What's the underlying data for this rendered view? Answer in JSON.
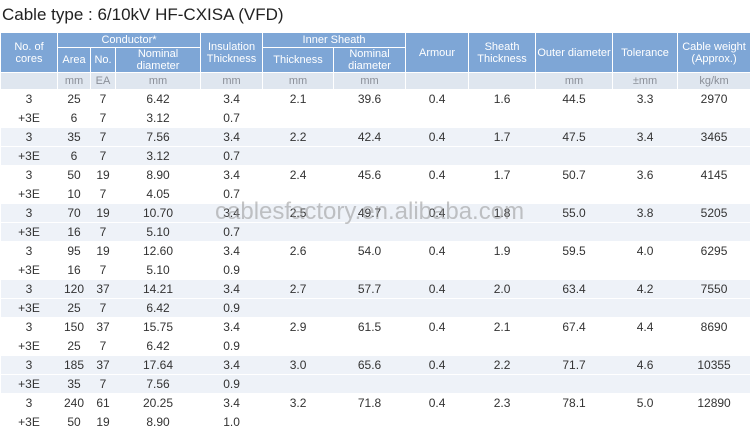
{
  "title": "Cable type : 6/10kV HF-CXISA (VFD)",
  "watermark": "cablesfactory.en.alibaba.com",
  "header": {
    "cores": "No. of cores",
    "conductor": "Conductor*",
    "insulation": "Insulation Thickness",
    "inner_sheath": "Inner Sheath",
    "armour": "Armour",
    "sheath": "Sheath Thickness",
    "outer": "Outer diameter",
    "tolerance": "Tolerance",
    "weight": "Cable weight (Approx.)",
    "sub": [
      "Area",
      "No.",
      "Nominal diameter",
      "Thickness",
      "Nominal diameter"
    ],
    "units": [
      "mm",
      "EA",
      "mm",
      "mm",
      "mm",
      "mm",
      "",
      "",
      "mm",
      "±mm",
      "kg/km"
    ]
  },
  "table": {
    "rows": [
      [
        "3",
        "25",
        "7",
        "6.42",
        "3.4",
        "2.1",
        "39.6",
        "0.4",
        "1.6",
        "44.5",
        "3.3",
        "2970"
      ],
      [
        "+3E",
        "6",
        "7",
        "3.12",
        "0.7"
      ],
      [
        "3",
        "35",
        "7",
        "7.56",
        "3.4",
        "2.2",
        "42.4",
        "0.4",
        "1.7",
        "47.5",
        "3.4",
        "3465"
      ],
      [
        "+3E",
        "6",
        "7",
        "3.12",
        "0.7"
      ],
      [
        "3",
        "50",
        "19",
        "8.90",
        "3.4",
        "2.4",
        "45.6",
        "0.4",
        "1.7",
        "50.7",
        "3.6",
        "4145"
      ],
      [
        "+3E",
        "10",
        "7",
        "4.05",
        "0.7"
      ],
      [
        "3",
        "70",
        "19",
        "10.70",
        "3.4",
        "2.5",
        "49.7",
        "0.4",
        "1.8",
        "55.0",
        "3.8",
        "5205"
      ],
      [
        "+3E",
        "16",
        "7",
        "5.10",
        "0.7"
      ],
      [
        "3",
        "95",
        "19",
        "12.60",
        "3.4",
        "2.6",
        "54.0",
        "0.4",
        "1.9",
        "59.5",
        "4.0",
        "6295"
      ],
      [
        "+3E",
        "16",
        "7",
        "5.10",
        "0.9"
      ],
      [
        "3",
        "120",
        "37",
        "14.21",
        "3.4",
        "2.7",
        "57.7",
        "0.4",
        "2.0",
        "63.4",
        "4.2",
        "7550"
      ],
      [
        "+3E",
        "25",
        "7",
        "6.42",
        "0.9"
      ],
      [
        "3",
        "150",
        "37",
        "15.75",
        "3.4",
        "2.9",
        "61.5",
        "0.4",
        "2.1",
        "67.4",
        "4.4",
        "8690"
      ],
      [
        "+3E",
        "25",
        "7",
        "6.42",
        "0.9"
      ],
      [
        "3",
        "185",
        "37",
        "17.64",
        "3.4",
        "3.0",
        "65.6",
        "0.4",
        "2.2",
        "71.7",
        "4.6",
        "10355"
      ],
      [
        "+3E",
        "35",
        "7",
        "7.56",
        "0.9"
      ],
      [
        "3",
        "240",
        "61",
        "20.25",
        "3.4",
        "3.2",
        "71.8",
        "0.4",
        "2.3",
        "78.1",
        "5.0",
        "12890"
      ],
      [
        "+3E",
        "50",
        "19",
        "8.90",
        "1.0"
      ]
    ]
  }
}
